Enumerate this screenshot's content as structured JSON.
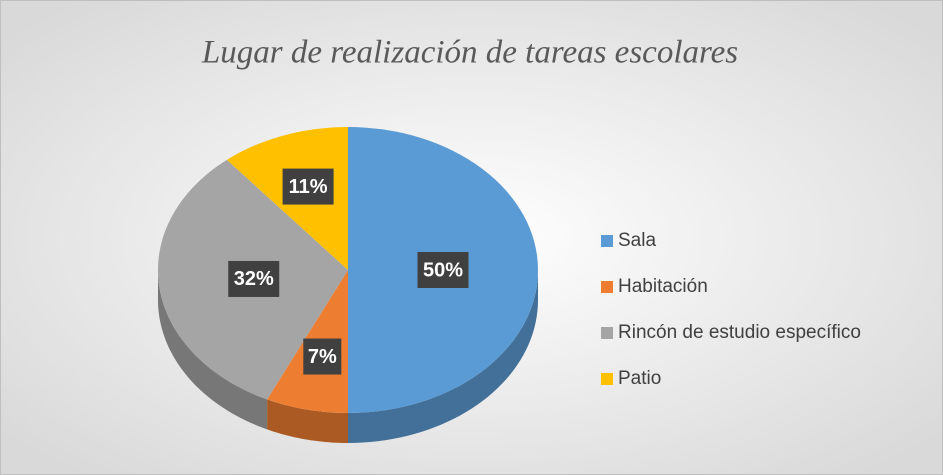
{
  "chart_data": {
    "type": "pie",
    "title": "Lugar de realización de tareas escolares",
    "categories": [
      "Sala",
      "Habitación",
      "Rincón de estudio específico",
      "Patio"
    ],
    "values": [
      50,
      7,
      32,
      11
    ],
    "value_labels": [
      "50%",
      "7%",
      "32%",
      "11%"
    ],
    "colors": [
      "#5b9bd5",
      "#ed7d31",
      "#a5a5a5",
      "#ffc000"
    ],
    "legend": "right"
  }
}
